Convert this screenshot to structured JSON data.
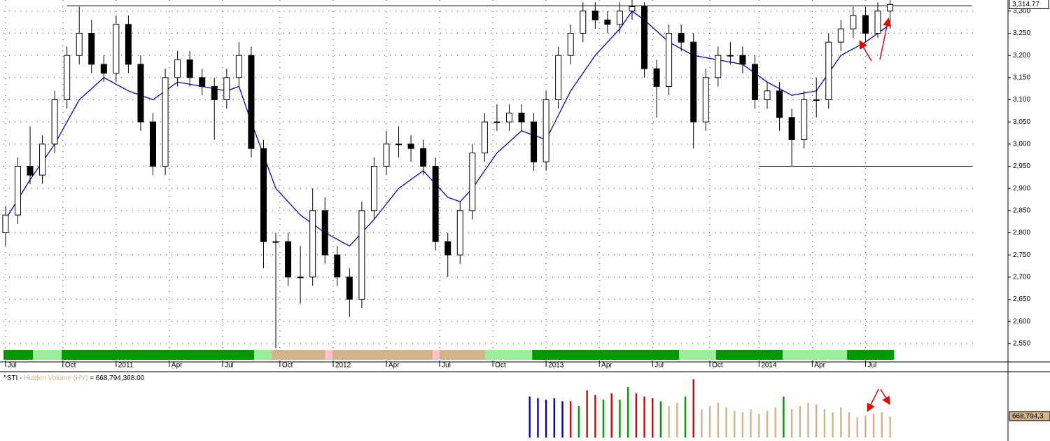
{
  "chart_data": [
    {
      "type": "candlestick",
      "xlim": [
        -0.5,
        244.8
      ],
      "ylim": [
        2515,
        3325
      ],
      "yticks": [
        {
          "value": 2550,
          "label": "2,550"
        },
        {
          "value": 2600,
          "label": "2,600"
        },
        {
          "value": 2650,
          "label": "2,650"
        },
        {
          "value": 2700,
          "label": "2,700"
        },
        {
          "value": 2750,
          "label": "2,750"
        },
        {
          "value": 2800,
          "label": "2,800"
        },
        {
          "value": 2850,
          "label": "2,850"
        },
        {
          "value": 2900,
          "label": "2,900"
        },
        {
          "value": 2950,
          "label": "2,950"
        },
        {
          "value": 3000,
          "label": "3,000"
        },
        {
          "value": 3050,
          "label": "3,050"
        },
        {
          "value": 3100,
          "label": "3,100"
        },
        {
          "value": 3150,
          "label": "3,150"
        },
        {
          "value": 3200,
          "label": "3,200"
        },
        {
          "value": 3250,
          "label": "3,250"
        },
        {
          "value": 3300,
          "label": "3,300"
        }
      ],
      "xticks": [
        {
          "value": 0,
          "label": "Jul"
        },
        {
          "value": 14,
          "label": "Oct"
        },
        {
          "value": 27,
          "label": "2011"
        },
        {
          "value": 40,
          "label": "Apr"
        },
        {
          "value": 53,
          "label": "Jul"
        },
        {
          "value": 67,
          "label": "Oct"
        },
        {
          "value": 80,
          "label": "2012"
        },
        {
          "value": 93,
          "label": "Apr"
        },
        {
          "value": 106,
          "label": "Jul"
        },
        {
          "value": 119,
          "label": "Oct"
        },
        {
          "value": 132,
          "label": "2013"
        },
        {
          "value": 145,
          "label": "Apr"
        },
        {
          "value": 158,
          "label": "Jul"
        },
        {
          "value": 172,
          "label": "Oct"
        },
        {
          "value": 184,
          "label": "2014"
        },
        {
          "value": 197,
          "label": "Apr"
        },
        {
          "value": 210,
          "label": "Jul"
        }
      ],
      "grid": true,
      "up_color": "#ffffff",
      "down_color": "#000000",
      "x": [
        0,
        3,
        6,
        9,
        12,
        15,
        18,
        21,
        24,
        27,
        30,
        33,
        36,
        39,
        42,
        45,
        48,
        51,
        54,
        57,
        60,
        63,
        66,
        69,
        72,
        75,
        78,
        81,
        84,
        87,
        90,
        93,
        96,
        99,
        102,
        105,
        108,
        111,
        114,
        117,
        120,
        123,
        126,
        129,
        132,
        135,
        138,
        141,
        144,
        147,
        150,
        153,
        156,
        159,
        162,
        165,
        168,
        171,
        174,
        177,
        180,
        183,
        186,
        189,
        192,
        195,
        198,
        201,
        204,
        207,
        210,
        213,
        216
      ],
      "ohlc": [
        [
          2800,
          2860,
          2770,
          2840
        ],
        [
          2840,
          2970,
          2820,
          2950
        ],
        [
          2950,
          3040,
          2910,
          2930
        ],
        [
          2930,
          3020,
          2910,
          3000
        ],
        [
          3000,
          3120,
          2980,
          3100
        ],
        [
          3100,
          3220,
          3080,
          3200
        ],
        [
          3200,
          3310,
          3180,
          3250
        ],
        [
          3250,
          3280,
          3160,
          3180
        ],
        [
          3180,
          3200,
          3140,
          3160
        ],
        [
          3160,
          3290,
          3140,
          3270
        ],
        [
          3270,
          3290,
          3160,
          3180
        ],
        [
          3180,
          3200,
          3030,
          3050
        ],
        [
          3050,
          3070,
          2930,
          2950
        ],
        [
          2950,
          3170,
          2930,
          3150
        ],
        [
          3150,
          3210,
          3130,
          3190
        ],
        [
          3190,
          3210,
          3130,
          3150
        ],
        [
          3150,
          3170,
          3110,
          3130
        ],
        [
          3130,
          3150,
          3010,
          3100
        ],
        [
          3100,
          3170,
          3080,
          3150
        ],
        [
          3150,
          3230,
          3130,
          3200
        ],
        [
          3200,
          3220,
          2970,
          2990
        ],
        [
          2990,
          3010,
          2720,
          2780
        ],
        [
          2780,
          2800,
          2540,
          2780
        ],
        [
          2780,
          2800,
          2680,
          2700
        ],
        [
          2700,
          2770,
          2640,
          2700
        ],
        [
          2700,
          2900,
          2680,
          2850
        ],
        [
          2850,
          2880,
          2730,
          2750
        ],
        [
          2750,
          2770,
          2680,
          2700
        ],
        [
          2700,
          2720,
          2610,
          2650
        ],
        [
          2650,
          2870,
          2630,
          2850
        ],
        [
          2850,
          2970,
          2830,
          2950
        ],
        [
          2950,
          3030,
          2930,
          3000
        ],
        [
          3000,
          3040,
          2970,
          3000
        ],
        [
          3000,
          3020,
          2960,
          2990
        ],
        [
          2990,
          3010,
          2930,
          2950
        ],
        [
          2950,
          2970,
          2760,
          2780
        ],
        [
          2780,
          2800,
          2700,
          2750
        ],
        [
          2750,
          2870,
          2730,
          2850
        ],
        [
          2850,
          3000,
          2830,
          2980
        ],
        [
          2980,
          3070,
          2960,
          3050
        ],
        [
          3050,
          3090,
          3030,
          3050
        ],
        [
          3050,
          3090,
          3030,
          3070
        ],
        [
          3070,
          3090,
          3030,
          3050
        ],
        [
          3050,
          3070,
          2940,
          2960
        ],
        [
          2960,
          3120,
          2940,
          3100
        ],
        [
          3100,
          3220,
          3080,
          3200
        ],
        [
          3200,
          3270,
          3180,
          3250
        ],
        [
          3250,
          3320,
          3230,
          3300
        ],
        [
          3300,
          3320,
          3260,
          3280
        ],
        [
          3280,
          3300,
          3250,
          3270
        ],
        [
          3270,
          3320,
          3250,
          3300
        ],
        [
          3300,
          3330,
          3280,
          3310
        ],
        [
          3310,
          3320,
          3150,
          3170
        ],
        [
          3170,
          3190,
          3060,
          3130
        ],
        [
          3130,
          3270,
          3110,
          3250
        ],
        [
          3250,
          3270,
          3210,
          3230
        ],
        [
          3230,
          3250,
          2990,
          3050
        ],
        [
          3050,
          3170,
          3030,
          3150
        ],
        [
          3150,
          3220,
          3130,
          3200
        ],
        [
          3200,
          3230,
          3180,
          3200
        ],
        [
          3200,
          3220,
          3160,
          3180
        ],
        [
          3180,
          3200,
          3080,
          3100
        ],
        [
          3100,
          3140,
          3080,
          3120
        ],
        [
          3120,
          3140,
          3030,
          3060
        ],
        [
          3060,
          3080,
          2950,
          3010
        ],
        [
          3010,
          3120,
          2990,
          3100
        ],
        [
          3100,
          3150,
          3060,
          3100
        ],
        [
          3100,
          3250,
          3080,
          3230
        ],
        [
          3230,
          3280,
          3210,
          3260
        ],
        [
          3260,
          3310,
          3240,
          3290
        ],
        [
          3290,
          3310,
          3230,
          3250
        ],
        [
          3250,
          3320,
          3240,
          3300
        ],
        [
          3300,
          3330,
          3260,
          3315
        ]
      ],
      "ma": {
        "color": "#0000cc",
        "x": [
          0,
          6,
          12,
          18,
          24,
          30,
          36,
          42,
          48,
          54,
          57,
          60,
          66,
          72,
          78,
          84,
          90,
          96,
          102,
          108,
          111,
          114,
          120,
          126,
          132,
          138,
          144,
          150,
          153,
          156,
          162,
          168,
          174,
          180,
          186,
          192,
          198,
          204,
          210,
          216
        ],
        "values": [
          2830,
          2920,
          3000,
          3100,
          3150,
          3120,
          3100,
          3140,
          3130,
          3120,
          3130,
          3050,
          2900,
          2840,
          2800,
          2770,
          2830,
          2900,
          2940,
          2880,
          2870,
          2900,
          2980,
          3030,
          3010,
          3120,
          3200,
          3260,
          3300,
          3280,
          3230,
          3200,
          3190,
          3180,
          3140,
          3110,
          3120,
          3200,
          3230,
          3270
        ]
      },
      "levels": [
        {
          "value": 3312,
          "x": [
            15,
            236
          ]
        },
        {
          "value": 2950,
          "x": [
            184,
            236
          ]
        }
      ],
      "last_price": {
        "value": 3314.77,
        "label": "3,314.77"
      },
      "status_band": [
        {
          "x": [
            -0.5,
            6.7
          ],
          "color": "#009900"
        },
        {
          "x": [
            6.7,
            13.7
          ],
          "color": "#99ee99"
        },
        {
          "x": [
            13.7,
            60.7
          ],
          "color": "#009900"
        },
        {
          "x": [
            60.7,
            65
          ],
          "color": "#99ee99"
        },
        {
          "x": [
            65,
            78.1
          ],
          "color": "#d2b48c"
        },
        {
          "x": [
            78.1,
            79.8
          ],
          "color": "#ffc0cb"
        },
        {
          "x": [
            79.8,
            104.3
          ],
          "color": "#d2b48c"
        },
        {
          "x": [
            104.3,
            106
          ],
          "color": "#ffc0cb"
        },
        {
          "x": [
            106,
            117.1
          ],
          "color": "#d2b48c"
        },
        {
          "x": [
            117.1,
            128.6
          ],
          "color": "#99ee99"
        },
        {
          "x": [
            128.6,
            164.5
          ],
          "color": "#009900"
        },
        {
          "x": [
            164.5,
            173.5
          ],
          "color": "#99ee99"
        },
        {
          "x": [
            173.5,
            189.8
          ],
          "color": "#009900"
        },
        {
          "x": [
            189.8,
            205.5
          ],
          "color": "#99ee99"
        },
        {
          "x": [
            205.5,
            217
          ],
          "color": "#009900"
        }
      ]
    },
    {
      "type": "bar",
      "symbol": "^STI - ",
      "indicator": "Hidden Volume (HV)",
      "hv": {
        "value": 668794368,
        "label": " = 668,794,368.00"
      },
      "last_tag": "668,794,3",
      "xlim": [
        -0.5,
        244.8
      ],
      "ylim": [
        0,
        2000
      ],
      "x": [
        128,
        130,
        132,
        134,
        136,
        138,
        140,
        142,
        144,
        146,
        148,
        150,
        152,
        154,
        156,
        158,
        160,
        162,
        164,
        166,
        168,
        170,
        172,
        174,
        176,
        178,
        180,
        182,
        184,
        186,
        188,
        190,
        192,
        194,
        196,
        198,
        200,
        202,
        204,
        206,
        208,
        210,
        212,
        214,
        216
      ],
      "values": [
        1300,
        1250,
        1200,
        1250,
        1150,
        1150,
        1000,
        1500,
        1350,
        1200,
        1400,
        1200,
        1600,
        1400,
        1300,
        1250,
        1150,
        1000,
        1100,
        1300,
        1850,
        900,
        1000,
        1100,
        950,
        850,
        800,
        900,
        750,
        850,
        950,
        1300,
        900,
        1000,
        1100,
        1050,
        900,
        800,
        950,
        800,
        650,
        700,
        750,
        800,
        668.79
      ],
      "colors": [
        "#0000cc",
        "#0000cc",
        "#0000cc",
        "#0000cc",
        "#0000cc",
        "#dd0000",
        "#009900",
        "#dd0000",
        "#dd0000",
        "#009900",
        "#dd0000",
        "#009900",
        "#009900",
        "#dd0000",
        "#dd0000",
        "#dd0000",
        "#009900",
        "#d2b48c",
        "#d2b48c",
        "#009900",
        "#dd0000",
        "#d2b48c",
        "#d2b48c",
        "#d2b48c",
        "#d2b48c",
        "#d2b48c",
        "#d2b48c",
        "#d2b48c",
        "#d2b48c",
        "#d2b48c",
        "#d2b48c",
        "#009900",
        "#d2b48c",
        "#d2b48c",
        "#d2b48c",
        "#d2b48c",
        "#d2b48c",
        "#d2b48c",
        "#d2b48c",
        "#d2b48c",
        "#d2b48c",
        "#d2b48c",
        "#d2b48c",
        "#d2b48c",
        "#d2b48c"
      ]
    }
  ]
}
